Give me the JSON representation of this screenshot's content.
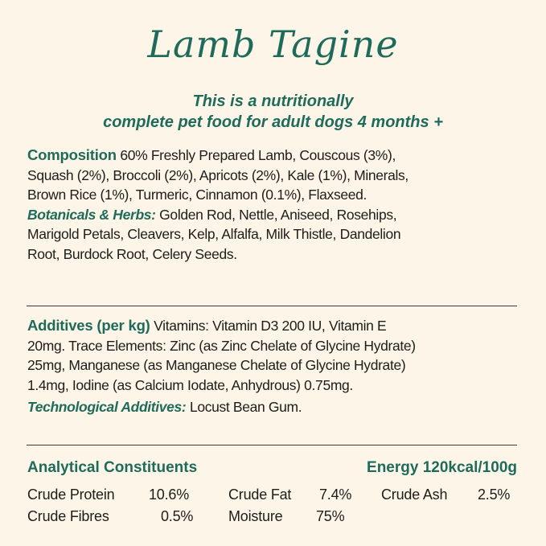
{
  "title": "Lamb Tagine",
  "subtitle": [
    "This is a nutritionally",
    "complete pet food for adult dogs 4 months +"
  ],
  "composition": {
    "label": "Composition",
    "lines": [
      "60% Freshly Prepared Lamb, Couscous (3%),",
      "Squash (2%), Broccoli (2%), Apricots (2%), Kale (1%), Minerals,",
      "Brown Rice (1%), Turmeric, Cinnamon (0.1%), Flaxseed."
    ],
    "botanicals_label": "Botanicals & Herbs:",
    "botanicals_lines": [
      "Golden Rod, Nettle, Aniseed, Rosehips,",
      "Marigold Petals, Cleavers, Kelp, Alfalfa, Milk Thistle, Dandelion",
      "Root, Burdock Root, Celery Seeds."
    ]
  },
  "additives": {
    "label": "Additives (per kg)",
    "lines": [
      "Vitamins: Vitamin D3 200 IU, Vitamin E",
      "20mg. Trace Elements: Zinc (as Zinc Chelate of Glycine Hydrate)",
      "25mg, Manganese (as Manganese Chelate of Glycine Hydrate)",
      "1.4mg, Iodine (as Calcium Iodate, Anhydrous) 0.75mg."
    ],
    "tech_label": "Technological Additives:",
    "tech_value": "Locust Bean Gum."
  },
  "analytical": {
    "label": "Analytical Constituents",
    "energy": "Energy 120kcal/100g",
    "items": [
      {
        "name": "Crude Protein",
        "value": "10.6%"
      },
      {
        "name": "Crude Fat",
        "value": "7.4%"
      },
      {
        "name": "Crude Ash",
        "value": "2.5%"
      },
      {
        "name": "Crude Fibres",
        "value": "0.5%"
      },
      {
        "name": "Moisture",
        "value": "75%"
      }
    ]
  },
  "colors": {
    "background": "#fdf5e7",
    "accent": "#1f6b5b",
    "text": "#1d1d1b"
  }
}
